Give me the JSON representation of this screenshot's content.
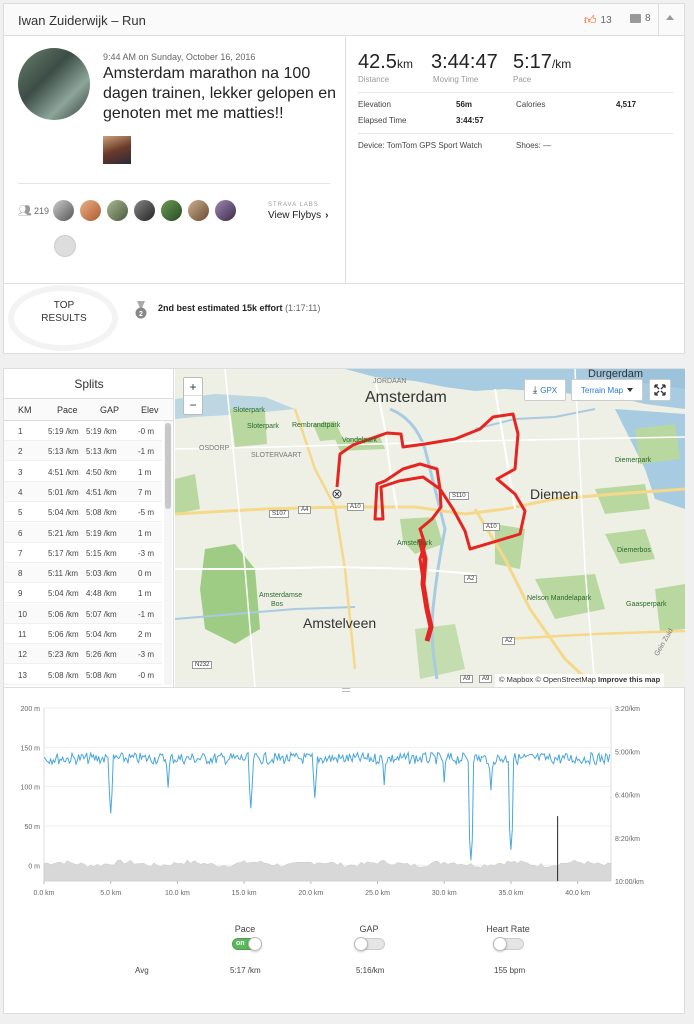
{
  "header": {
    "title": "Iwan Zuiderwijk – Run",
    "kudos_count": "13",
    "comment_count": "8"
  },
  "activity": {
    "date": "9:44 AM on Sunday, October 16, 2016",
    "title": "Amsterdam marathon na 100 dagen trainen, lekker gelopen en genoten met me matties!!",
    "athlete_count": "219",
    "labs_label": "STRAVA LABS",
    "flybys_label": "View Flybys"
  },
  "stats": {
    "distance": "42.5",
    "distance_unit": "km",
    "distance_label": "Distance",
    "moving_time": "3:44:47",
    "moving_time_label": "Moving Time",
    "pace": "5:17",
    "pace_unit": "/km",
    "pace_label": "Pace",
    "elevation_label": "Elevation",
    "elevation": "56m",
    "calories_label": "Calories",
    "calories": "4,517",
    "elapsed_label": "Elapsed Time",
    "elapsed": "3:44:57",
    "device": "Device: TomTom GPS Sport Watch",
    "shoes": "Shoes: —"
  },
  "top_results": {
    "label_line1": "TOP",
    "label_line2": "RESULTS",
    "medal_rank": "2",
    "result_bold": "2nd best estimated 15k effort",
    "result_time": "(1:17:11)"
  },
  "splits": {
    "title": "Splits",
    "headers": [
      "KM",
      "Pace",
      "GAP",
      "Elev"
    ],
    "rows": [
      [
        "1",
        "5:19 /km",
        "5:19 /km",
        "-0 m"
      ],
      [
        "2",
        "5:13 /km",
        "5:13 /km",
        "-1 m"
      ],
      [
        "3",
        "4:51 /km",
        "4:50 /km",
        "1 m"
      ],
      [
        "4",
        "5:01 /km",
        "4:51 /km",
        "7 m"
      ],
      [
        "5",
        "5:04 /km",
        "5:08 /km",
        "-5 m"
      ],
      [
        "6",
        "5:21 /km",
        "5:19 /km",
        "1 m"
      ],
      [
        "7",
        "5:17 /km",
        "5:15 /km",
        "-3 m"
      ],
      [
        "8",
        "5:11 /km",
        "5:03 /km",
        "0 m"
      ],
      [
        "9",
        "5:04 /km",
        "4:48 /km",
        "1 m"
      ],
      [
        "10",
        "5:06 /km",
        "5:07 /km",
        "-1 m"
      ],
      [
        "11",
        "5:06 /km",
        "5:04 /km",
        "2 m"
      ],
      [
        "12",
        "5:23 /km",
        "5:26 /km",
        "-3 m"
      ],
      [
        "13",
        "5:08 /km",
        "5:08 /km",
        "-0 m"
      ]
    ]
  },
  "map": {
    "gpx_label": "GPX",
    "terrain_label": "Terrain Map",
    "zoom_in": "+",
    "zoom_out": "−",
    "attribution_mapbox": "© Mapbox",
    "attribution_osm": "© OpenStreetMap",
    "attribution_improve": "Improve this map",
    "labels": {
      "amsterdam": "Amsterdam",
      "amstelveen": "Amstelveen",
      "diemen": "Diemen",
      "durgerdam": "Durgerdam",
      "jordaan": "JORDAAN",
      "sloterpark": "Sloterpark",
      "sloterpark2": "Sloterpark",
      "rembrandtpark": "Rembrandtpark",
      "vondelpark": "Vondelpark",
      "osdorp": "OSDORP",
      "slotervaart": "SLOTERVAART",
      "amstelpark": "Amstelpark",
      "amsterdamse_bos": "Amsterdamse Bos",
      "diemerpark": "Diemerpark",
      "diemerbos": "Diemerbos",
      "nelson": "Nelson Mandelapark",
      "gaasperpark": "Gaasperpark",
      "gein_zuid": "Gein Zuid",
      "s110": "S110",
      "s107": "S107",
      "a10": "A10",
      "a10b": "A10",
      "a4": "A4",
      "a2": "A2",
      "a2b": "A2",
      "a9": "A9",
      "a9b": "A9",
      "n232": "N232"
    }
  },
  "chart_data": {
    "type": "line",
    "x_axis": {
      "range": [
        0,
        42.5
      ],
      "unit": "km",
      "ticks": [
        "0.0 km",
        "5.0 km",
        "10.0 km",
        "15.0 km",
        "20.0 km",
        "25.0 km",
        "30.0 km",
        "35.0 km",
        "40.0 km"
      ]
    },
    "y_left": {
      "range": [
        -20,
        200
      ],
      "unit": "m",
      "ticks": [
        "200 m",
        "150 m",
        "100 m",
        "50 m",
        "0 m"
      ]
    },
    "y_right": {
      "range_pace_min_per_km": [
        3.333,
        10
      ],
      "ticks": [
        "3:20/km",
        "5:00/km",
        "6:40/km",
        "8:20/km",
        "10:00/km"
      ]
    },
    "series": [
      {
        "name": "Pace",
        "color": "#4aa6de",
        "baseline_pace_min_per_km": 5.28,
        "dips": [
          {
            "km": 5.0,
            "pace_min_per_km": 7.4
          },
          {
            "km": 9.3,
            "pace_min_per_km": 6.4
          },
          {
            "km": 15.5,
            "pace_min_per_km": 7.2
          },
          {
            "km": 20.3,
            "pace_min_per_km": 6.8
          },
          {
            "km": 25.5,
            "pace_min_per_km": 6.3
          },
          {
            "km": 30.0,
            "pace_min_per_km": 6.2
          },
          {
            "km": 32.0,
            "pace_min_per_km": 9.2
          },
          {
            "km": 33.5,
            "pace_min_per_km": 6.5
          },
          {
            "km": 35.0,
            "pace_min_per_km": 8.8
          }
        ]
      },
      {
        "name": "Elevation",
        "color": "#d8d8d8",
        "approx_m": 2
      }
    ],
    "cursor_km": 38.5,
    "legend_toggles": [
      {
        "name": "Pace",
        "on": true,
        "avg": "5:17 /km"
      },
      {
        "name": "GAP",
        "on": false,
        "avg": "5:16/km"
      },
      {
        "name": "Heart Rate",
        "on": false,
        "avg": "155 bpm"
      }
    ]
  },
  "toggles": {
    "pace_label": "Pace",
    "gap_label": "GAP",
    "hr_label": "Heart Rate",
    "on_text": "on",
    "avg_label": "Avg",
    "pace_avg": "5:17 /km",
    "gap_avg": "5:16/km",
    "hr_avg": "155 bpm"
  },
  "colors": {
    "route": "#e52521",
    "water": "#a7cbe0",
    "park": "#b8d8a0",
    "pace_line": "#4aa6de",
    "kudos": "#fc4c02"
  }
}
